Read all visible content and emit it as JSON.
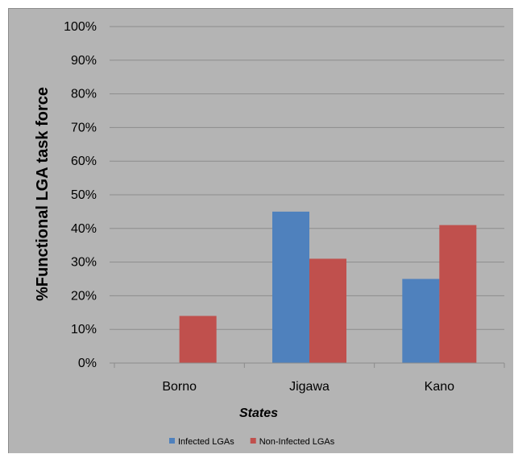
{
  "chart_data": {
    "type": "bar",
    "categories": [
      "Borno",
      "Jigawa",
      "Kano"
    ],
    "series": [
      {
        "name": "Infected LGAs",
        "values": [
          0,
          45,
          25
        ],
        "color": "#4f81bd"
      },
      {
        "name": "Non-Infected LGAs",
        "values": [
          14,
          31,
          41
        ],
        "color": "#c0504d"
      }
    ],
    "ylim": [
      0,
      100
    ],
    "yticks": [
      "0%",
      "10%",
      "20%",
      "30%",
      "40%",
      "50%",
      "60%",
      "70%",
      "80%",
      "90%",
      "100%"
    ],
    "xlabel": "States",
    "ylabel": "%Functional LGA task force",
    "grid": true,
    "legend_position": "bottom",
    "background_color": "#b4b4b4",
    "gridline_color": "#8c8c8c"
  }
}
